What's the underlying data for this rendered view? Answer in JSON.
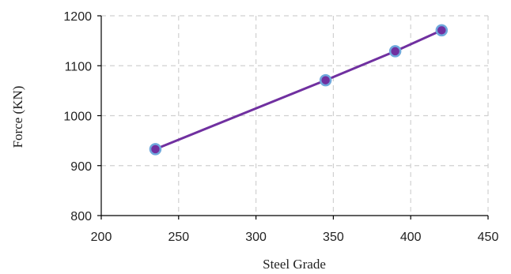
{
  "chart_data": {
    "type": "line",
    "title": "",
    "xlabel": "Steel Grade",
    "ylabel": "Force (KN)",
    "xlim": [
      200,
      450
    ],
    "ylim": [
      800,
      1200
    ],
    "xticks": [
      200,
      250,
      300,
      350,
      400,
      450
    ],
    "yticks": [
      800,
      900,
      1000,
      1100,
      1200
    ],
    "grid": true,
    "legend": "none",
    "series": [
      {
        "x": [
          235,
          345,
          390,
          420
        ],
        "y": [
          933,
          1071,
          1129,
          1171
        ],
        "line_color": "#7030A0",
        "marker_fill": "#7030A0",
        "marker_edge": "#6FA8DC"
      }
    ]
  }
}
